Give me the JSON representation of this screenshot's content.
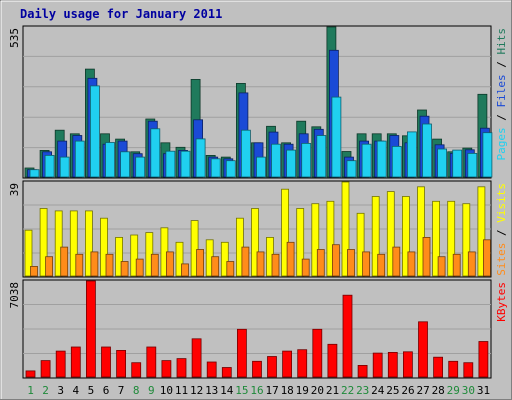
{
  "chart_data": {
    "type": "bar",
    "title": "Daily usage for January 2011",
    "categories": [
      "1",
      "2",
      "3",
      "4",
      "5",
      "6",
      "7",
      "8",
      "9",
      "10",
      "11",
      "12",
      "13",
      "14",
      "15",
      "16",
      "17",
      "18",
      "19",
      "20",
      "21",
      "22",
      "23",
      "24",
      "25",
      "26",
      "27",
      "28",
      "29",
      "30",
      "31"
    ],
    "weekend_days": [
      "1",
      "2",
      "8",
      "9",
      "15",
      "16",
      "22",
      "23",
      "29",
      "30"
    ],
    "panels": [
      {
        "id": "top",
        "ylabel_max": "535",
        "ymax": 535,
        "right_label_parts": [
          "Pages",
          "Files",
          "Hits"
        ],
        "series": [
          {
            "name": "Hits",
            "color": "#1f7a5c",
            "values": [
              32,
              95,
              167,
              154,
              385,
              154,
              135,
              90,
              207,
              122,
              106,
              348,
              77,
              71,
              334,
              122,
              181,
              122,
              199,
              179,
              535,
              91,
              154,
              154,
              154,
              147,
              239,
              135,
              90,
              103,
              295
            ]
          },
          {
            "name": "Files",
            "color": "#1a4ad6",
            "values": [
              26,
              90,
              128,
              148,
              352,
              117,
              128,
              83,
              199,
              83,
              95,
              204,
              71,
              65,
              300,
              122,
              160,
              117,
              154,
              170,
              452,
              71,
              128,
              128,
              148,
              122,
              217,
              115,
              84,
              97,
              174
            ]
          },
          {
            "name": "Pages",
            "color": "#20d0f0",
            "values": [
              26,
              77,
              71,
              128,
              325,
              123,
              90,
              71,
              172,
              92,
              92,
              136,
              65,
              58,
              167,
              71,
              117,
              96,
              120,
              148,
              285,
              58,
              117,
              128,
              109,
              161,
              189,
              100,
              96,
              84,
              158
            ]
          }
        ]
      },
      {
        "id": "middle",
        "ylabel_max": "39",
        "ymax": 39,
        "right_label_parts": [
          "Sites",
          "Visits"
        ],
        "series": [
          {
            "name": "Visits",
            "color": "#ffff00",
            "values": [
              19,
              28,
              27,
              27,
              27,
              24,
              16,
              17,
              18,
              20,
              14,
              23,
              15,
              14,
              24,
              28,
              16,
              36,
              28,
              30,
              31,
              39,
              26,
              33,
              35,
              33,
              37,
              31,
              31,
              30,
              37
            ]
          },
          {
            "name": "Sites",
            "color": "#ff8c1a",
            "values": [
              4,
              8,
              12,
              9,
              10,
              9,
              6,
              7,
              9,
              10,
              5,
              11,
              8,
              6,
              12,
              10,
              9,
              14,
              7,
              11,
              13,
              11,
              10,
              9,
              12,
              10,
              16,
              8,
              9,
              10,
              15
            ]
          }
        ]
      },
      {
        "id": "bottom",
        "ylabel_max": "7038",
        "ymax": 7038,
        "right_label_parts": [
          "KBytes"
        ],
        "series": [
          {
            "name": "KBytes",
            "color": "#ff0000",
            "values": [
              450,
              1200,
              1900,
              2200,
              7038,
              2200,
              1950,
              1050,
              2200,
              1200,
              1350,
              2800,
              1100,
              700,
              3500,
              1150,
              1500,
              1900,
              2000,
              3500,
              2400,
              6000,
              850,
              1750,
              1800,
              1850,
              4050,
              1450,
              1150,
              1050,
              2600
            ]
          }
        ]
      }
    ],
    "grid": true,
    "legend": "right-vertical"
  }
}
